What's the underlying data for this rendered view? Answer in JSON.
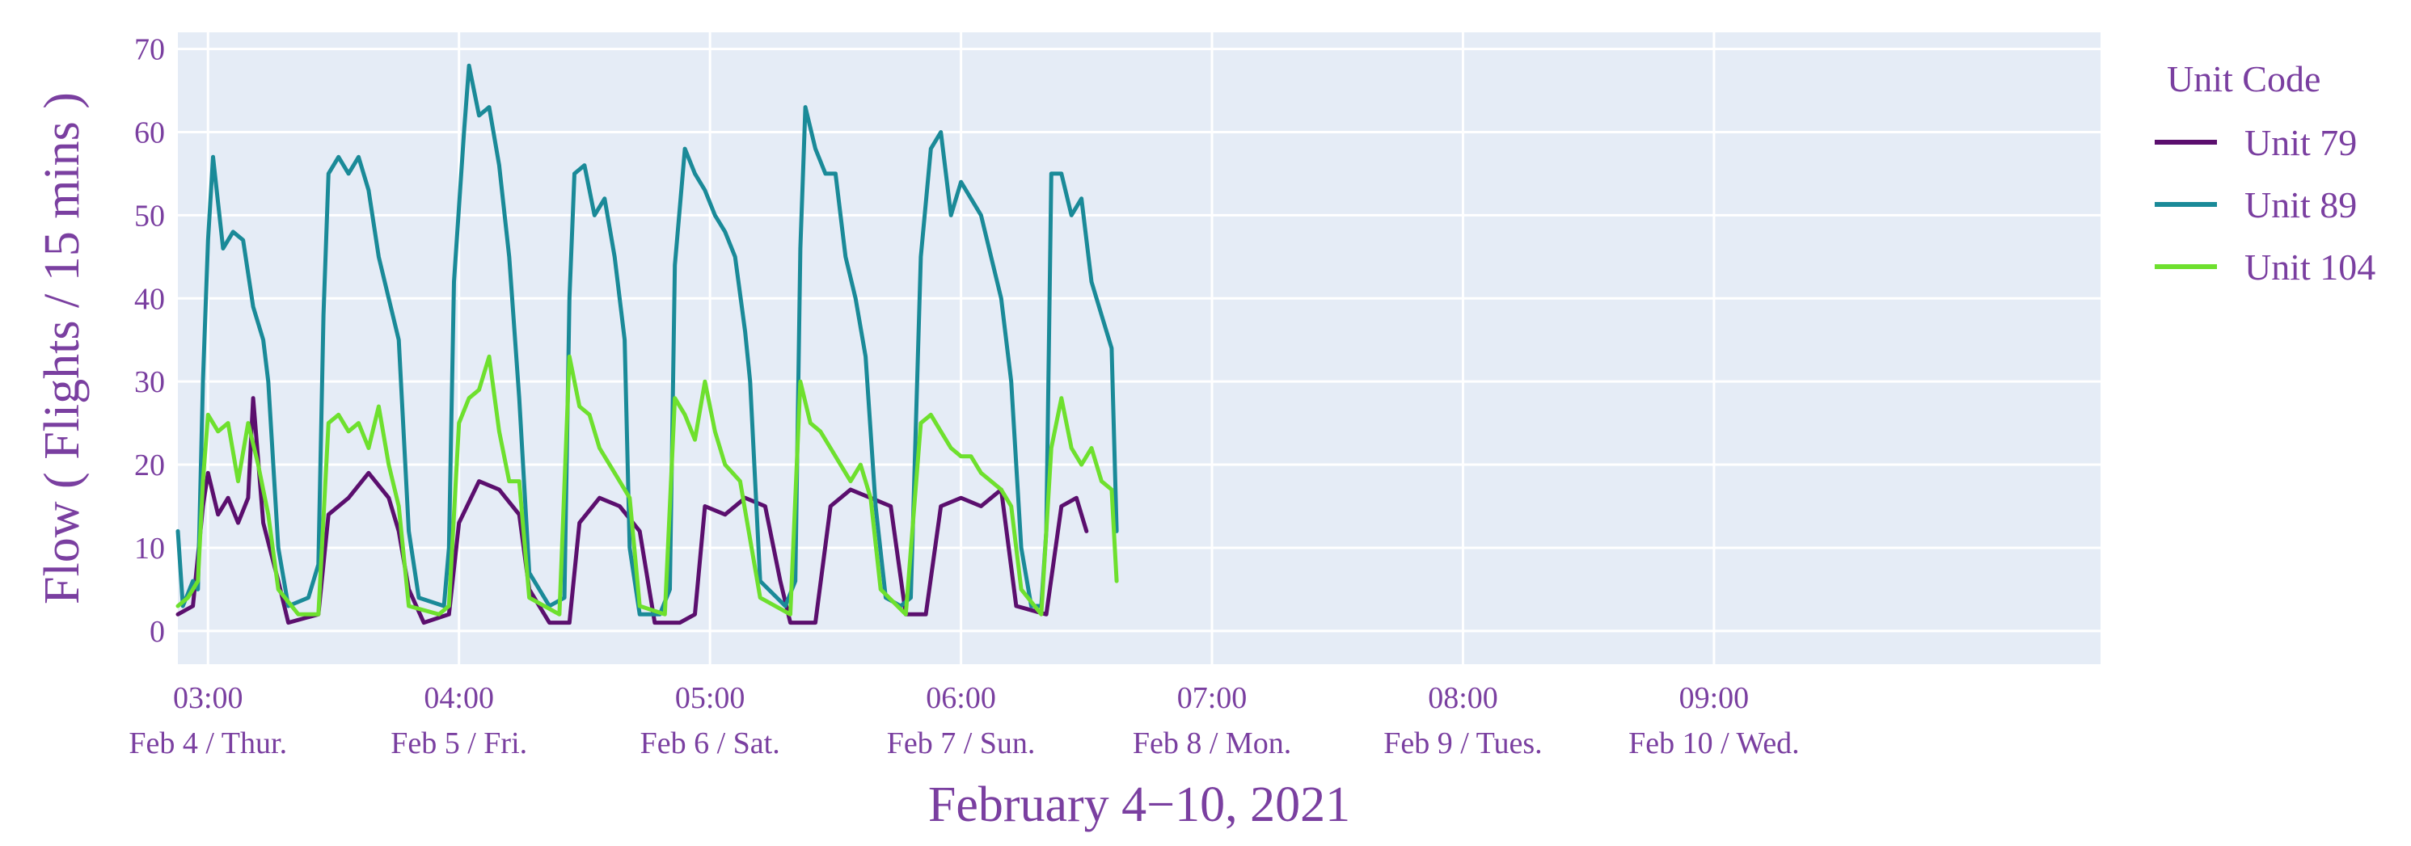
{
  "chart_data": {
    "type": "line",
    "title": "",
    "xlabel": "February 4−10, 2021",
    "ylabel": "Flow ( Flights / 15 mins )",
    "ylim": [
      -4,
      72
    ],
    "yticks": [
      0,
      10,
      20,
      30,
      40,
      50,
      60,
      70
    ],
    "x_start": "2021-02-03T00:00",
    "x_end": "2021-02-10T23:30",
    "xticks": [
      {
        "x": "2021-02-03T03:00",
        "time": "03:00",
        "day": "Feb 4 / Thur."
      },
      {
        "x": "2021-02-04T04:00",
        "time": "04:00",
        "day": "Feb 5 / Fri."
      },
      {
        "x": "2021-02-05T05:00",
        "time": "05:00",
        "day": "Feb 6 / Sat."
      },
      {
        "x": "2021-02-06T06:00",
        "time": "06:00",
        "day": "Feb 7 / Sun."
      },
      {
        "x": "2021-02-07T07:00",
        "time": "07:00",
        "day": "Feb 8 / Mon."
      },
      {
        "x": "2021-02-08T08:00",
        "time": "08:00",
        "day": "Feb 9 / Tues."
      },
      {
        "x": "2021-02-09T09:00",
        "time": "09:00",
        "day": "Feb 10 / Wed."
      }
    ],
    "grid": true,
    "legend": {
      "title": "Unit Code",
      "placement": "right"
    },
    "plot_background": "#e5ecf6",
    "sample_interval_minutes": 15,
    "series": [
      {
        "name": "Unit 79",
        "color": "#5b0f6e",
        "points": [
          [
            "2021-02-03T00:00",
            2
          ],
          [
            "2021-02-03T01:30",
            3
          ],
          [
            "2021-02-03T02:30",
            15
          ],
          [
            "2021-02-03T03:00",
            19
          ],
          [
            "2021-02-03T04:00",
            14
          ],
          [
            "2021-02-03T05:00",
            16
          ],
          [
            "2021-02-03T06:00",
            13
          ],
          [
            "2021-02-03T07:00",
            16
          ],
          [
            "2021-02-03T07:30",
            28
          ],
          [
            "2021-02-03T08:30",
            13
          ],
          [
            "2021-02-03T10:00",
            6
          ],
          [
            "2021-02-03T11:00",
            1
          ],
          [
            "2021-02-03T14:00",
            2
          ],
          [
            "2021-02-03T15:00",
            14
          ],
          [
            "2021-02-03T17:00",
            16
          ],
          [
            "2021-02-03T19:00",
            19
          ],
          [
            "2021-02-03T21:00",
            16
          ],
          [
            "2021-02-03T22:00",
            12
          ],
          [
            "2021-02-03T23:00",
            5
          ],
          [
            "2021-02-04T00:30",
            1
          ],
          [
            "2021-02-04T03:00",
            2
          ],
          [
            "2021-02-04T04:00",
            13
          ],
          [
            "2021-02-04T06:00",
            18
          ],
          [
            "2021-02-04T08:00",
            17
          ],
          [
            "2021-02-04T10:00",
            14
          ],
          [
            "2021-02-04T11:00",
            5
          ],
          [
            "2021-02-04T13:00",
            1
          ],
          [
            "2021-02-04T15:00",
            1
          ],
          [
            "2021-02-04T16:00",
            13
          ],
          [
            "2021-02-04T18:00",
            16
          ],
          [
            "2021-02-04T20:00",
            15
          ],
          [
            "2021-02-04T22:00",
            12
          ],
          [
            "2021-02-04T23:30",
            1
          ],
          [
            "2021-02-05T02:00",
            1
          ],
          [
            "2021-02-05T03:30",
            2
          ],
          [
            "2021-02-05T04:30",
            15
          ],
          [
            "2021-02-05T06:30",
            14
          ],
          [
            "2021-02-05T08:30",
            16
          ],
          [
            "2021-02-05T10:30",
            15
          ],
          [
            "2021-02-05T12:00",
            6
          ],
          [
            "2021-02-05T13:00",
            1
          ],
          [
            "2021-02-05T15:30",
            1
          ],
          [
            "2021-02-05T17:00",
            15
          ],
          [
            "2021-02-05T19:00",
            17
          ],
          [
            "2021-02-05T21:00",
            16
          ],
          [
            "2021-02-05T23:00",
            15
          ],
          [
            "2021-02-06T00:30",
            2
          ],
          [
            "2021-02-06T02:30",
            2
          ],
          [
            "2021-02-06T04:00",
            15
          ],
          [
            "2021-02-06T06:00",
            16
          ],
          [
            "2021-02-06T08:00",
            15
          ],
          [
            "2021-02-06T10:00",
            17
          ],
          [
            "2021-02-06T11:30",
            3
          ],
          [
            "2021-02-06T14:30",
            2
          ],
          [
            "2021-02-06T16:00",
            15
          ],
          [
            "2021-02-06T17:30",
            16
          ],
          [
            "2021-02-06T18:30",
            12
          ]
        ]
      },
      {
        "name": "Unit 89",
        "color": "#1a8a98",
        "points": [
          [
            "2021-02-03T00:00",
            12
          ],
          [
            "2021-02-03T00:30",
            3
          ],
          [
            "2021-02-03T01:30",
            6
          ],
          [
            "2021-02-03T02:00",
            5
          ],
          [
            "2021-02-03T02:30",
            30
          ],
          [
            "2021-02-03T03:00",
            47
          ],
          [
            "2021-02-03T03:30",
            57
          ],
          [
            "2021-02-03T04:30",
            46
          ],
          [
            "2021-02-03T05:30",
            48
          ],
          [
            "2021-02-03T06:30",
            47
          ],
          [
            "2021-02-03T07:30",
            39
          ],
          [
            "2021-02-03T08:30",
            35
          ],
          [
            "2021-02-03T09:00",
            30
          ],
          [
            "2021-02-03T10:00",
            10
          ],
          [
            "2021-02-03T11:00",
            3
          ],
          [
            "2021-02-03T13:00",
            4
          ],
          [
            "2021-02-03T14:00",
            8
          ],
          [
            "2021-02-03T14:30",
            38
          ],
          [
            "2021-02-03T15:00",
            55
          ],
          [
            "2021-02-03T16:00",
            57
          ],
          [
            "2021-02-03T17:00",
            55
          ],
          [
            "2021-02-03T18:00",
            57
          ],
          [
            "2021-02-03T19:00",
            53
          ],
          [
            "2021-02-03T20:00",
            45
          ],
          [
            "2021-02-03T21:00",
            40
          ],
          [
            "2021-02-03T22:00",
            35
          ],
          [
            "2021-02-03T23:00",
            12
          ],
          [
            "2021-02-04T00:00",
            4
          ],
          [
            "2021-02-04T02:30",
            3
          ],
          [
            "2021-02-04T03:00",
            10
          ],
          [
            "2021-02-04T03:30",
            42
          ],
          [
            "2021-02-04T04:30",
            60
          ],
          [
            "2021-02-04T05:00",
            68
          ],
          [
            "2021-02-04T06:00",
            62
          ],
          [
            "2021-02-04T07:00",
            63
          ],
          [
            "2021-02-04T08:00",
            56
          ],
          [
            "2021-02-04T09:00",
            45
          ],
          [
            "2021-02-04T10:00",
            28
          ],
          [
            "2021-02-04T11:00",
            7
          ],
          [
            "2021-02-04T13:00",
            3
          ],
          [
            "2021-02-04T14:30",
            4
          ],
          [
            "2021-02-04T15:00",
            40
          ],
          [
            "2021-02-04T15:30",
            55
          ],
          [
            "2021-02-04T16:30",
            56
          ],
          [
            "2021-02-04T17:30",
            50
          ],
          [
            "2021-02-04T18:30",
            52
          ],
          [
            "2021-02-04T19:30",
            45
          ],
          [
            "2021-02-04T20:30",
            35
          ],
          [
            "2021-02-04T21:00",
            10
          ],
          [
            "2021-02-04T22:00",
            2
          ],
          [
            "2021-02-05T00:00",
            2
          ],
          [
            "2021-02-05T01:00",
            5
          ],
          [
            "2021-02-05T01:30",
            44
          ],
          [
            "2021-02-05T02:30",
            58
          ],
          [
            "2021-02-05T03:30",
            55
          ],
          [
            "2021-02-05T04:30",
            53
          ],
          [
            "2021-02-05T05:30",
            50
          ],
          [
            "2021-02-05T06:30",
            48
          ],
          [
            "2021-02-05T07:30",
            45
          ],
          [
            "2021-02-05T08:30",
            36
          ],
          [
            "2021-02-05T09:00",
            30
          ],
          [
            "2021-02-05T10:00",
            6
          ],
          [
            "2021-02-05T12:30",
            3
          ],
          [
            "2021-02-05T13:30",
            6
          ],
          [
            "2021-02-05T14:00",
            46
          ],
          [
            "2021-02-05T14:30",
            63
          ],
          [
            "2021-02-05T15:30",
            58
          ],
          [
            "2021-02-05T16:30",
            55
          ],
          [
            "2021-02-05T17:30",
            55
          ],
          [
            "2021-02-05T18:30",
            45
          ],
          [
            "2021-02-05T19:30",
            40
          ],
          [
            "2021-02-05T20:30",
            33
          ],
          [
            "2021-02-05T21:30",
            15
          ],
          [
            "2021-02-05T22:30",
            4
          ],
          [
            "2021-02-06T00:00",
            3
          ],
          [
            "2021-02-06T01:00",
            4
          ],
          [
            "2021-02-06T02:00",
            45
          ],
          [
            "2021-02-06T03:00",
            58
          ],
          [
            "2021-02-06T04:00",
            60
          ],
          [
            "2021-02-06T05:00",
            50
          ],
          [
            "2021-02-06T06:00",
            54
          ],
          [
            "2021-02-06T07:00",
            52
          ],
          [
            "2021-02-06T08:00",
            50
          ],
          [
            "2021-02-06T09:00",
            45
          ],
          [
            "2021-02-06T10:00",
            40
          ],
          [
            "2021-02-06T11:00",
            30
          ],
          [
            "2021-02-06T12:00",
            10
          ],
          [
            "2021-02-06T13:00",
            3
          ],
          [
            "2021-02-06T14:00",
            3
          ],
          [
            "2021-02-06T14:30",
            12
          ],
          [
            "2021-02-06T15:00",
            55
          ],
          [
            "2021-02-06T16:00",
            55
          ],
          [
            "2021-02-06T17:00",
            50
          ],
          [
            "2021-02-06T18:00",
            52
          ],
          [
            "2021-02-06T19:00",
            42
          ],
          [
            "2021-02-06T20:00",
            38
          ],
          [
            "2021-02-06T21:00",
            34
          ],
          [
            "2021-02-06T21:30",
            12
          ]
        ]
      },
      {
        "name": "Unit 104",
        "color": "#6ee02e",
        "points": [
          [
            "2021-02-03T00:00",
            3
          ],
          [
            "2021-02-03T01:00",
            4
          ],
          [
            "2021-02-03T02:00",
            6
          ],
          [
            "2021-02-03T02:30",
            18
          ],
          [
            "2021-02-03T03:00",
            26
          ],
          [
            "2021-02-03T04:00",
            24
          ],
          [
            "2021-02-03T05:00",
            25
          ],
          [
            "2021-02-03T06:00",
            18
          ],
          [
            "2021-02-03T07:00",
            25
          ],
          [
            "2021-02-03T08:00",
            20
          ],
          [
            "2021-02-03T09:00",
            14
          ],
          [
            "2021-02-03T10:00",
            5
          ],
          [
            "2021-02-03T12:00",
            2
          ],
          [
            "2021-02-03T14:00",
            2
          ],
          [
            "2021-02-03T15:00",
            25
          ],
          [
            "2021-02-03T16:00",
            26
          ],
          [
            "2021-02-03T17:00",
            24
          ],
          [
            "2021-02-03T18:00",
            25
          ],
          [
            "2021-02-03T19:00",
            22
          ],
          [
            "2021-02-03T20:00",
            27
          ],
          [
            "2021-02-03T21:00",
            20
          ],
          [
            "2021-02-03T22:00",
            15
          ],
          [
            "2021-02-03T23:00",
            3
          ],
          [
            "2021-02-04T02:00",
            2
          ],
          [
            "2021-02-04T03:00",
            3
          ],
          [
            "2021-02-04T04:00",
            25
          ],
          [
            "2021-02-04T05:00",
            28
          ],
          [
            "2021-02-04T06:00",
            29
          ],
          [
            "2021-02-04T07:00",
            33
          ],
          [
            "2021-02-04T08:00",
            24
          ],
          [
            "2021-02-04T09:00",
            18
          ],
          [
            "2021-02-04T10:00",
            18
          ],
          [
            "2021-02-04T11:00",
            4
          ],
          [
            "2021-02-04T14:00",
            2
          ],
          [
            "2021-02-04T15:00",
            33
          ],
          [
            "2021-02-04T16:00",
            27
          ],
          [
            "2021-02-04T17:00",
            26
          ],
          [
            "2021-02-04T18:00",
            22
          ],
          [
            "2021-02-04T19:00",
            20
          ],
          [
            "2021-02-04T20:00",
            18
          ],
          [
            "2021-02-04T21:00",
            16
          ],
          [
            "2021-02-04T22:00",
            3
          ],
          [
            "2021-02-05T00:30",
            2
          ],
          [
            "2021-02-05T01:30",
            28
          ],
          [
            "2021-02-05T02:30",
            26
          ],
          [
            "2021-02-05T03:30",
            23
          ],
          [
            "2021-02-05T04:30",
            30
          ],
          [
            "2021-02-05T05:30",
            24
          ],
          [
            "2021-02-05T06:30",
            20
          ],
          [
            "2021-02-05T08:00",
            18
          ],
          [
            "2021-02-05T10:00",
            4
          ],
          [
            "2021-02-05T13:00",
            2
          ],
          [
            "2021-02-05T14:00",
            30
          ],
          [
            "2021-02-05T15:00",
            25
          ],
          [
            "2021-02-05T16:00",
            24
          ],
          [
            "2021-02-05T17:00",
            22
          ],
          [
            "2021-02-05T18:00",
            20
          ],
          [
            "2021-02-05T19:00",
            18
          ],
          [
            "2021-02-05T20:00",
            20
          ],
          [
            "2021-02-05T21:00",
            16
          ],
          [
            "2021-02-05T22:00",
            5
          ],
          [
            "2021-02-06T00:30",
            2
          ],
          [
            "2021-02-06T02:00",
            25
          ],
          [
            "2021-02-06T03:00",
            26
          ],
          [
            "2021-02-06T04:00",
            24
          ],
          [
            "2021-02-06T05:00",
            22
          ],
          [
            "2021-02-06T06:00",
            21
          ],
          [
            "2021-02-06T07:00",
            21
          ],
          [
            "2021-02-06T08:00",
            19
          ],
          [
            "2021-02-06T09:00",
            18
          ],
          [
            "2021-02-06T10:00",
            17
          ],
          [
            "2021-02-06T11:00",
            15
          ],
          [
            "2021-02-06T12:00",
            5
          ],
          [
            "2021-02-06T14:00",
            2
          ],
          [
            "2021-02-06T15:00",
            22
          ],
          [
            "2021-02-06T16:00",
            28
          ],
          [
            "2021-02-06T17:00",
            22
          ],
          [
            "2021-02-06T18:00",
            20
          ],
          [
            "2021-02-06T19:00",
            22
          ],
          [
            "2021-02-06T20:00",
            18
          ],
          [
            "2021-02-06T21:00",
            17
          ],
          [
            "2021-02-06T21:30",
            6
          ]
        ]
      }
    ]
  }
}
